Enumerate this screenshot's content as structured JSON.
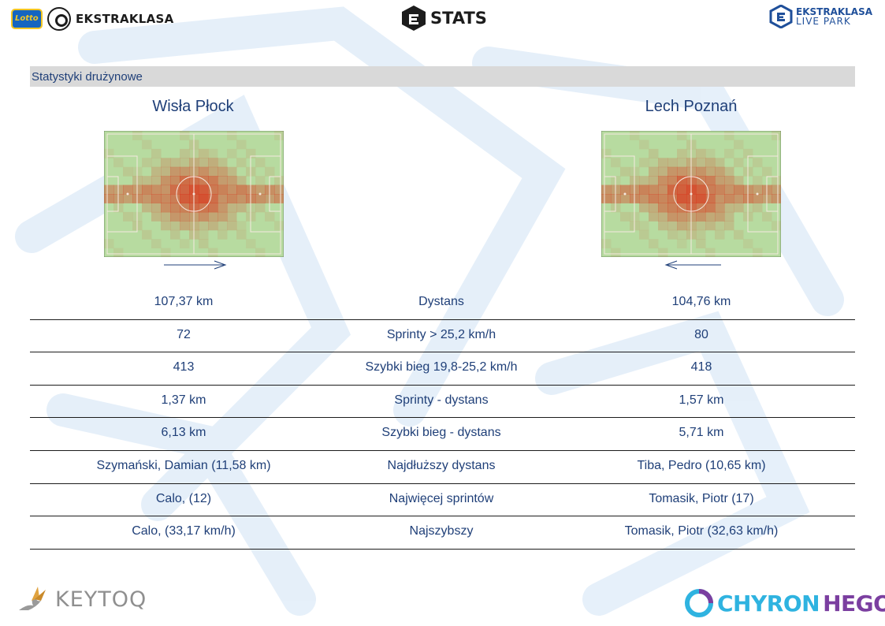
{
  "header": {
    "lotto_badge": "Lotto",
    "left_logo_text": "EKSTRAKLASA",
    "center_logo_text": "STATS",
    "right_logo_line1": "EKSTRAKLASA",
    "right_logo_line2": "LIVE PARK"
  },
  "section": {
    "title": "Statystyki drużynowe"
  },
  "teams": {
    "home": "Wisła Płock",
    "away": "Lech Poznań"
  },
  "stats": [
    {
      "label": "Dystans",
      "home": "107,37 km",
      "away": "104,76 km"
    },
    {
      "label": "Sprinty > 25,2 km/h",
      "home": "72",
      "away": "80"
    },
    {
      "label": "Szybki bieg 19,8-25,2 km/h",
      "home": "413",
      "away": "418"
    },
    {
      "label": "Sprinty - dystans",
      "home": "1,37 km",
      "away": "1,57 km"
    },
    {
      "label": "Szybki bieg - dystans",
      "home": "6,13 km",
      "away": "5,71 km"
    },
    {
      "label": "Najdłuższy dystans",
      "home": "Szymański, Damian (11,58 km)",
      "away": "Tiba, Pedro (10,65 km)"
    },
    {
      "label": "Najwięcej sprintów",
      "home": "Calo,  (12)",
      "away": "Tomasik, Piotr (17)"
    },
    {
      "label": "Najszybszy",
      "home": "Calo,  (33,17 km/h)",
      "away": "Tomasik, Piotr (32,63 km/h)"
    }
  ],
  "footer": {
    "left_brand": "KEYTOQ",
    "right_brand_a": "CHYRON",
    "right_brand_b": "HEGO"
  },
  "colors": {
    "text": "#1f3f78",
    "pitch": "#b7dba0",
    "heat": "#d9391e",
    "bar": "#d9d9d9"
  }
}
